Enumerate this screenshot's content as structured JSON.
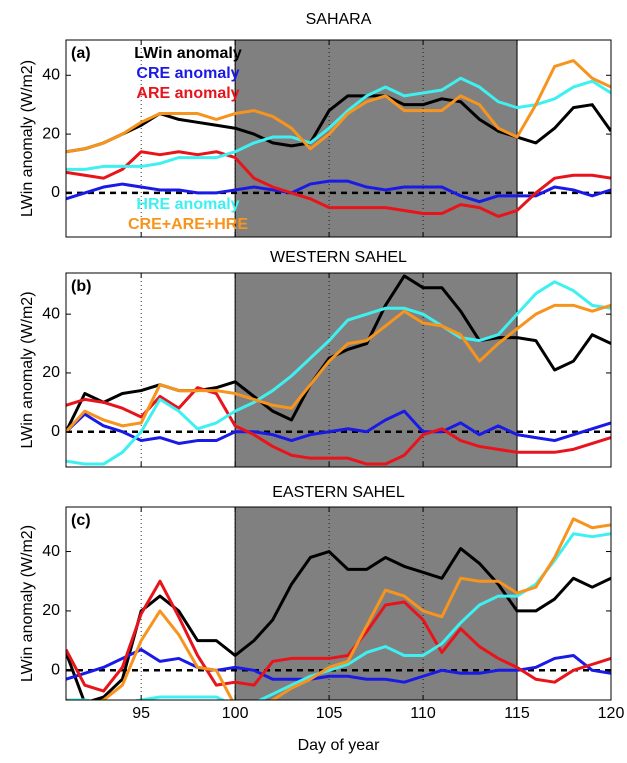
{
  "chart_data": [
    {
      "type": "line",
      "title": "SAHARA",
      "panel_label": "(a)",
      "y_label": "LWin anomaly (W/m2)",
      "x": [
        91,
        92,
        93,
        94,
        95,
        96,
        97,
        98,
        99,
        100,
        101,
        102,
        103,
        104,
        105,
        106,
        107,
        108,
        109,
        110,
        111,
        112,
        113,
        114,
        115,
        116,
        117,
        118,
        119,
        120
      ],
      "xlim": [
        91,
        120
      ],
      "xticks": [
        95,
        100,
        105,
        110,
        115,
        120
      ],
      "xtick_labels": false,
      "ylim": [
        -15,
        52
      ],
      "yticks": [
        0,
        20,
        40
      ],
      "grid": "x",
      "shade": {
        "range": [
          100,
          115
        ],
        "color": "#808080"
      },
      "legend_groups": [
        {
          "loc": "upper left",
          "series": [
            0,
            1,
            2
          ]
        },
        {
          "loc": "lower left",
          "series": [
            3,
            4
          ]
        }
      ],
      "series": [
        {
          "name": "LWin anomaly",
          "color": "#000000",
          "values": [
            14,
            15,
            17,
            20,
            23,
            27,
            25,
            24,
            23,
            22,
            20,
            17,
            16,
            17,
            28,
            33,
            33,
            33,
            30,
            30,
            32,
            31,
            25,
            21,
            19,
            17,
            22,
            29,
            30,
            21
          ]
        },
        {
          "name": "CRE anomaly",
          "color": "#1a1ae6",
          "values": [
            -2,
            0,
            2,
            3,
            2,
            1,
            1,
            0,
            0,
            1,
            2,
            1,
            0,
            3,
            4,
            4,
            2,
            1,
            2,
            2,
            2,
            -1,
            -3,
            -1,
            -1,
            -1,
            2,
            1,
            -1,
            1
          ]
        },
        {
          "name": "ARE anomaly",
          "color": "#e8141b",
          "values": [
            7,
            6,
            5,
            8,
            14,
            13,
            14,
            13,
            14,
            12,
            5,
            2,
            0,
            -2,
            -5,
            -5,
            -5,
            -5,
            -6,
            -7,
            -7,
            -4,
            -5,
            -8,
            -6,
            0,
            5,
            6,
            6,
            5
          ]
        },
        {
          "name": "HRE anomaly",
          "color": "#3ff0f0",
          "values": [
            8,
            8,
            9,
            9,
            9,
            10,
            12,
            12,
            12,
            14,
            17,
            19,
            19,
            17,
            22,
            28,
            33,
            36,
            33,
            34,
            35,
            39,
            36,
            31,
            29,
            30,
            32,
            36,
            38,
            34
          ]
        },
        {
          "name": "CRE+ARE+HRE",
          "color": "#f7941d",
          "values": [
            14,
            15,
            17,
            20,
            24,
            27,
            27,
            27,
            25,
            27,
            28,
            26,
            22,
            15,
            20,
            27,
            31,
            33,
            28,
            28,
            28,
            33,
            30,
            22,
            19,
            30,
            43,
            45,
            39,
            36
          ]
        }
      ]
    },
    {
      "type": "line",
      "title": "WESTERN SAHEL",
      "panel_label": "(b)",
      "y_label": "LWin anomaly (W/m2)",
      "x": [
        91,
        92,
        93,
        94,
        95,
        96,
        97,
        98,
        99,
        100,
        101,
        102,
        103,
        104,
        105,
        106,
        107,
        108,
        109,
        110,
        111,
        112,
        113,
        114,
        115,
        116,
        117,
        118,
        119,
        120
      ],
      "xlim": [
        91,
        120
      ],
      "xticks": [
        95,
        100,
        105,
        110,
        115,
        120
      ],
      "xtick_labels": false,
      "ylim": [
        -12,
        54
      ],
      "yticks": [
        0,
        20,
        40
      ],
      "grid": "x",
      "shade": {
        "range": [
          100,
          115
        ],
        "color": "#808080"
      },
      "series": [
        {
          "color": "#000000",
          "values": [
            0,
            13,
            10,
            13,
            14,
            16,
            14,
            14,
            15,
            17,
            12,
            7,
            4,
            16,
            25,
            28,
            30,
            43,
            53,
            49,
            49,
            41,
            31,
            32,
            32,
            31,
            21,
            24,
            33,
            30
          ]
        },
        {
          "color": "#1a1ae6",
          "values": [
            0,
            6,
            2,
            0,
            -3,
            -2,
            -4,
            -3,
            -3,
            0,
            0,
            -1,
            -3,
            -1,
            0,
            1,
            0,
            4,
            7,
            0,
            0,
            3,
            -1,
            2,
            -1,
            -2,
            -3,
            -1,
            1,
            3
          ]
        },
        {
          "color": "#e8141b",
          "values": [
            9,
            11,
            10,
            8,
            5,
            12,
            8,
            15,
            13,
            2,
            -1,
            -5,
            -8,
            -9,
            -9,
            -9,
            -11,
            -11,
            -8,
            -1,
            1,
            -3,
            -5,
            -6,
            -7,
            -7,
            -7,
            -6,
            -4,
            -2
          ]
        },
        {
          "color": "#3ff0f0",
          "values": [
            -10,
            -11,
            -11,
            -7,
            0,
            11,
            7,
            1,
            3,
            7,
            10,
            14,
            19,
            25,
            31,
            38,
            40,
            42,
            42,
            40,
            36,
            32,
            31,
            33,
            40,
            47,
            51,
            48,
            43,
            42
          ]
        },
        {
          "color": "#f7941d",
          "values": [
            0,
            7,
            4,
            2,
            3,
            16,
            14,
            14,
            14,
            13,
            11,
            9,
            8,
            16,
            24,
            30,
            31,
            36,
            41,
            37,
            36,
            33,
            24,
            30,
            35,
            40,
            43,
            43,
            41,
            43
          ]
        }
      ]
    },
    {
      "type": "line",
      "title": "EASTERN SAHEL",
      "panel_label": "(c)",
      "y_label": "LWin anomaly (W/m2)",
      "x_label": "Day of year",
      "x": [
        91,
        92,
        93,
        94,
        95,
        96,
        97,
        98,
        99,
        100,
        101,
        102,
        103,
        104,
        105,
        106,
        107,
        108,
        109,
        110,
        111,
        112,
        113,
        114,
        115,
        116,
        117,
        118,
        119,
        120
      ],
      "xlim": [
        91,
        120
      ],
      "xticks": [
        95,
        100,
        105,
        110,
        115,
        120
      ],
      "xtick_labels": true,
      "ylim": [
        -10,
        55
      ],
      "yticks": [
        0,
        20,
        40
      ],
      "grid": "x",
      "shade": {
        "range": [
          100,
          115
        ],
        "color": "#808080"
      },
      "series": [
        {
          "color": "#000000",
          "values": [
            6,
            -11,
            -9,
            -3,
            20,
            25,
            20,
            10,
            10,
            5,
            10,
            17,
            29,
            38,
            40,
            34,
            34,
            38,
            35,
            33,
            31,
            41,
            36,
            29,
            20,
            20,
            24,
            31,
            28,
            31
          ]
        },
        {
          "color": "#1a1ae6",
          "values": [
            -3,
            -1,
            1,
            4,
            7,
            3,
            4,
            1,
            0,
            1,
            0,
            -3,
            -3,
            -3,
            -2,
            -2,
            -3,
            -3,
            -4,
            -2,
            0,
            -1,
            -1,
            0,
            0,
            1,
            4,
            5,
            0,
            -1
          ]
        },
        {
          "color": "#e8141b",
          "values": [
            7,
            -5,
            -7,
            1,
            19,
            30,
            18,
            5,
            -5,
            -4,
            -5,
            3,
            4,
            4,
            4,
            5,
            13,
            22,
            23,
            17,
            6,
            14,
            8,
            4,
            1,
            -3,
            -4,
            0,
            2,
            4
          ]
        },
        {
          "color": "#3ff0f0",
          "values": [
            -10,
            -10,
            -11,
            -11,
            -10,
            -9,
            -9,
            -9,
            -9,
            -12,
            -11,
            -8,
            -5,
            -2,
            0,
            2,
            6,
            8,
            5,
            5,
            9,
            16,
            22,
            25,
            25,
            29,
            37,
            46,
            45,
            46
          ]
        },
        {
          "color": "#f7941d",
          "values": [
            -10,
            -12,
            -10,
            -5,
            10,
            20,
            12,
            1,
            0,
            -12,
            -15,
            -10,
            -6,
            -3,
            1,
            3,
            15,
            27,
            25,
            20,
            18,
            31,
            30,
            30,
            26,
            28,
            38,
            51,
            48,
            49
          ]
        }
      ]
    }
  ]
}
